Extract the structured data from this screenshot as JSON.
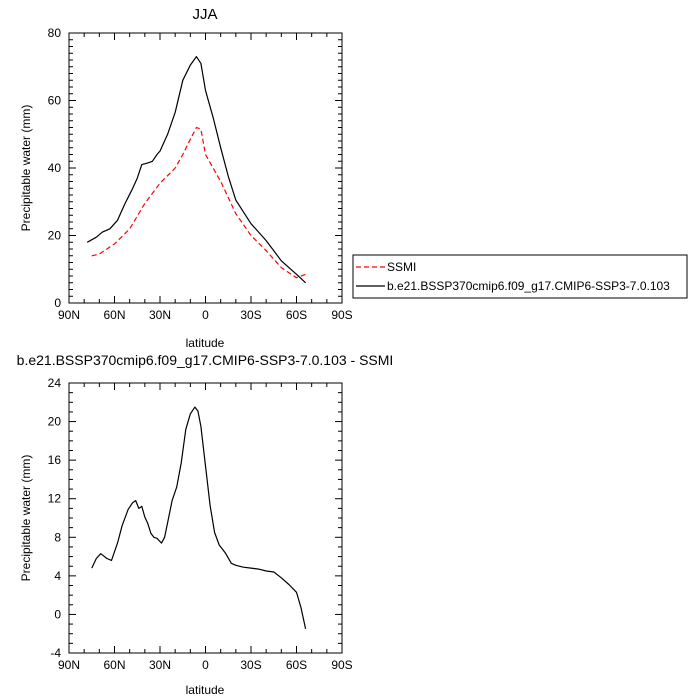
{
  "chart_data": [
    {
      "type": "line",
      "title": "JJA",
      "xlabel": "latitude",
      "ylabel": "Precipitable water (mm)",
      "xlim": [
        90,
        -90
      ],
      "ylim": [
        0,
        80
      ],
      "x_ticks": [
        90,
        60,
        30,
        0,
        -30,
        -60,
        -90
      ],
      "x_tick_labels": [
        "90N",
        "60N",
        "30N",
        "0",
        "30S",
        "60S",
        "90S"
      ],
      "y_ticks": [
        0,
        20,
        40,
        60,
        80
      ],
      "y_tick_labels": [
        "0",
        "20",
        "40",
        "60",
        "80"
      ],
      "legend_position": "right",
      "series": [
        {
          "name": "SSMI",
          "color": "#ff0000",
          "dash": "dashed",
          "x": [
            75,
            70,
            60,
            50,
            40,
            30,
            20,
            15,
            10,
            6,
            3,
            0,
            -5,
            -10,
            -20,
            -30,
            -40,
            -50,
            -60,
            -66
          ],
          "y": [
            14,
            14.5,
            17.5,
            22,
            29.5,
            35.5,
            40,
            44,
            48.5,
            52,
            51.5,
            44,
            40,
            36,
            26.5,
            20,
            15.5,
            10.5,
            7.5,
            8.5
          ]
        },
        {
          "name": "b.e21.BSSP370cmip6.f09_g17.CMIP6-SSP3-7.0.103",
          "color": "#000000",
          "dash": "solid",
          "x": [
            78,
            72,
            68,
            63,
            58,
            53,
            48,
            45,
            42,
            38,
            35,
            32,
            30,
            25,
            20,
            15,
            10,
            6,
            3,
            0,
            -5,
            -10,
            -15,
            -20,
            -30,
            -40,
            -50,
            -60,
            -66
          ],
          "y": [
            18,
            19.5,
            21,
            22,
            24.5,
            29.5,
            34,
            37,
            41,
            41.5,
            42,
            44,
            45,
            50,
            56.5,
            66,
            70.5,
            73,
            71,
            63,
            55,
            46,
            37.5,
            30.5,
            23.5,
            18.5,
            12.5,
            8.5,
            6
          ]
        }
      ]
    },
    {
      "type": "line",
      "title": "b.e21.BSSP370cmip6.f09_g17.CMIP6-SSP3-7.0.103 - SSMI",
      "xlabel": "latitude",
      "ylabel": "Precipitable water (mm)",
      "xlim": [
        90,
        -90
      ],
      "ylim": [
        -4,
        24
      ],
      "x_ticks": [
        90,
        60,
        30,
        0,
        -30,
        -60,
        -90
      ],
      "x_tick_labels": [
        "90N",
        "60N",
        "30N",
        "0",
        "30S",
        "60S",
        "90S"
      ],
      "y_ticks": [
        -4,
        0,
        4,
        8,
        12,
        16,
        20,
        24
      ],
      "y_tick_labels": [
        "-4",
        "0",
        "4",
        "8",
        "12",
        "16",
        "20",
        "24"
      ],
      "series": [
        {
          "color": "#000000",
          "dash": "solid",
          "x": [
            75,
            72,
            69,
            65,
            62,
            58,
            55,
            51,
            48,
            46,
            44,
            42,
            40,
            38,
            36,
            34,
            32,
            29,
            27,
            25,
            22,
            19,
            16,
            13,
            10,
            7,
            5,
            3,
            0,
            -3,
            -6,
            -9,
            -13,
            -17,
            -20,
            -25,
            -30,
            -35,
            -40,
            -45,
            -50,
            -55,
            -60,
            -63,
            -66
          ],
          "y": [
            4.8,
            5.8,
            6.3,
            5.8,
            5.6,
            7.4,
            9.2,
            10.9,
            11.6,
            11.8,
            11,
            11.2,
            10.1,
            9.4,
            8.4,
            8,
            7.9,
            7.4,
            8,
            9.5,
            11.8,
            13.2,
            15.7,
            19.2,
            20.8,
            21.5,
            21.1,
            19.5,
            15.4,
            11.3,
            8.5,
            7.2,
            6.4,
            5.3,
            5.1,
            4.9,
            4.8,
            4.7,
            4.5,
            4.4,
            3.8,
            3.1,
            2.3,
            0.7,
            -1.5
          ]
        }
      ]
    }
  ]
}
